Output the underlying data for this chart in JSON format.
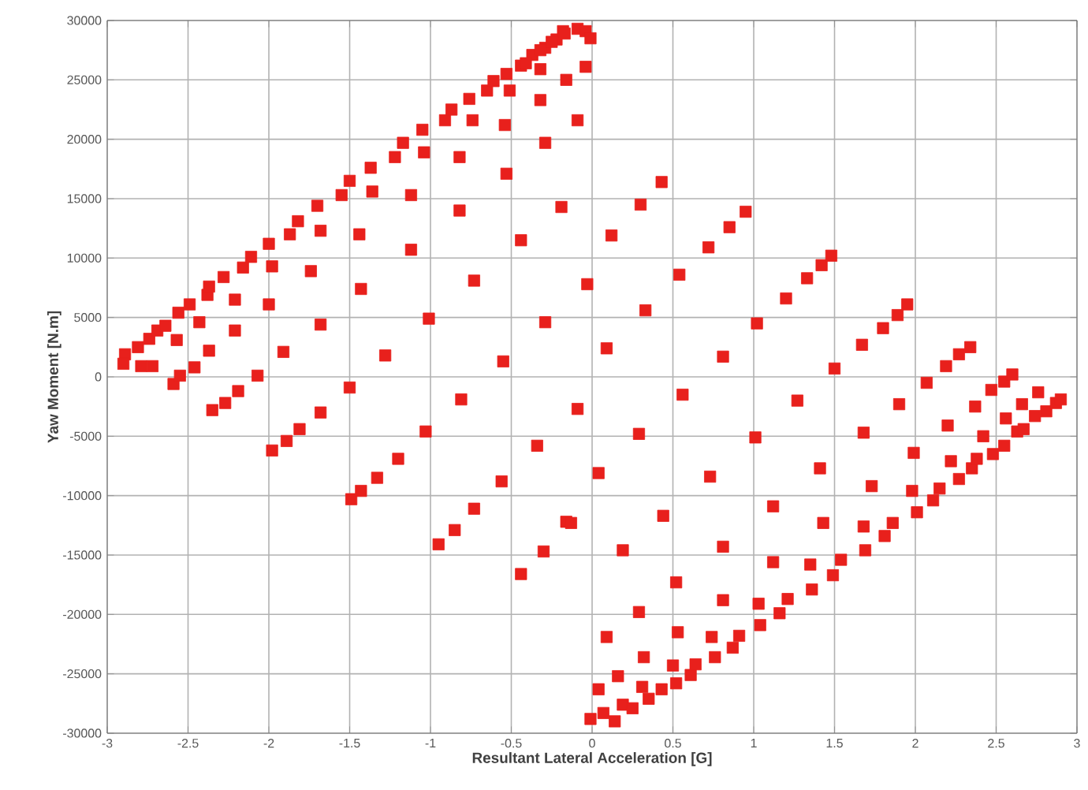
{
  "chart_data": {
    "type": "scatter",
    "xlabel": "Resultant Lateral Acceleration [G]",
    "ylabel": "Yaw Moment [N.m]",
    "xlim": [
      -3,
      3
    ],
    "ylim": [
      -30000,
      30000
    ],
    "xticks": [
      -3,
      -2.5,
      -2,
      -1.5,
      -1,
      -0.5,
      0,
      0.5,
      1,
      1.5,
      2,
      2.5,
      3
    ],
    "yticks": [
      -30000,
      -25000,
      -20000,
      -15000,
      -10000,
      -5000,
      0,
      5000,
      10000,
      15000,
      20000,
      25000,
      30000
    ],
    "grid": true,
    "marker": "square",
    "color": "#e8201c",
    "x": [
      -2.89,
      -2.81,
      -2.74,
      -2.69,
      -2.64,
      -2.56,
      -2.49,
      -2.38,
      -2.37,
      -2.28,
      -2.16,
      -2.11,
      -2.0,
      -1.87,
      -1.82,
      -1.7,
      -1.55,
      -1.5,
      -1.37,
      -1.22,
      -1.17,
      -1.05,
      -0.91,
      -0.87,
      -0.76,
      -0.65,
      -0.61,
      -0.53,
      -0.44,
      -0.37,
      -0.29,
      -0.22,
      -0.18,
      -0.41,
      -0.32,
      -0.25,
      -0.17,
      -0.09,
      -0.04,
      -0.01,
      -2.57,
      -2.43,
      -2.21,
      -1.98,
      -1.74,
      -1.68,
      -1.43,
      -1.44,
      -1.36,
      -1.12,
      -1.12,
      -1.04,
      -0.82,
      -0.74,
      -0.82,
      -0.73,
      -0.53,
      -0.54,
      -0.51,
      -0.44,
      -0.32,
      -0.32,
      -0.29,
      -0.29,
      -0.19,
      -0.16,
      -0.09,
      -0.04,
      -2.21,
      -2.37,
      -2.0,
      -1.91,
      -1.68,
      -1.28,
      -1.01,
      -0.55,
      -0.03,
      0.09,
      0.12,
      0.3,
      0.43,
      0.33,
      0.54,
      0.72,
      0.85,
      0.95,
      1.02,
      1.2,
      1.33,
      1.42,
      1.48,
      0.81,
      1.5,
      1.67,
      1.8,
      1.89,
      1.95,
      2.07,
      2.19,
      2.27,
      2.34,
      2.47,
      2.55,
      2.6,
      -2.9,
      -2.79,
      -2.72,
      -2.59,
      -2.55,
      -2.46,
      -2.35,
      -2.27,
      -2.19,
      -2.07,
      -1.98,
      -1.89,
      -1.81,
      -1.68,
      -1.5,
      -1.49,
      -1.43,
      -1.33,
      -1.2,
      -1.03,
      -0.81,
      -0.95,
      -0.85,
      -0.73,
      -0.56,
      -0.44,
      -0.34,
      -0.3,
      -0.16,
      -0.09,
      -0.13,
      0.04,
      0.19,
      0.29,
      0.44,
      0.56,
      0.73,
      0.81,
      1.01,
      1.12,
      1.12,
      1.27,
      1.41,
      1.43,
      1.68,
      1.68,
      1.73,
      1.9,
      1.99,
      1.98,
      2.2,
      2.22,
      2.37,
      2.42,
      2.56,
      -0.01,
      0.04,
      0.07,
      0.14,
      0.16,
      0.19,
      0.09,
      0.29,
      0.32,
      0.31,
      0.25,
      0.35,
      0.43,
      0.52,
      0.5,
      0.53,
      0.52,
      0.61,
      0.64,
      0.76,
      0.74,
      0.81,
      0.87,
      0.91,
      1.03,
      1.04,
      1.16,
      1.21,
      1.36,
      1.35,
      1.49,
      1.54,
      1.69,
      1.81,
      1.86,
      2.01,
      2.11,
      2.15,
      2.27,
      2.35,
      2.38,
      2.48,
      2.55,
      2.63,
      2.67,
      2.74,
      2.81,
      2.87,
      2.9,
      2.76,
      2.66
    ],
    "values": [
      1900,
      2500,
      3200,
      3900,
      4300,
      5400,
      6100,
      6900,
      7600,
      8400,
      9200,
      10100,
      11200,
      12000,
      13100,
      14400,
      15300,
      16500,
      17600,
      18500,
      19700,
      20800,
      21600,
      22500,
      23400,
      24100,
      24900,
      25500,
      26200,
      27100,
      27700,
      28400,
      29100,
      26400,
      27500,
      28200,
      28900,
      29300,
      29100,
      28500,
      3100,
      4600,
      6500,
      9300,
      8900,
      12300,
      7400,
      12000,
      15600,
      15300,
      10700,
      18900,
      18500,
      21600,
      14000,
      8100,
      17100,
      21200,
      24100,
      11500,
      25900,
      23300,
      19700,
      4600,
      14300,
      25000,
      21600,
      26100,
      3900,
      2200,
      6100,
      2100,
      4400,
      1800,
      4900,
      1300,
      7800,
      2400,
      11900,
      14500,
      16400,
      5600,
      8600,
      10900,
      12600,
      13900,
      4500,
      6600,
      8300,
      9400,
      10200,
      1700,
      700,
      2700,
      4100,
      5200,
      6100,
      -500,
      900,
      1900,
      2500,
      -1100,
      -400,
      200,
      1100,
      900,
      900,
      -600,
      100,
      800,
      -2800,
      -2200,
      -1200,
      100,
      -6200,
      -5400,
      -4400,
      -3000,
      -900,
      -10300,
      -9600,
      -8500,
      -6900,
      -4600,
      -1900,
      -14100,
      -12900,
      -11100,
      -8800,
      -16600,
      -5800,
      -14700,
      -12200,
      -2700,
      -12300,
      -8100,
      -14600,
      -4800,
      -11700,
      -1500,
      -8400,
      -14300,
      -5100,
      -10900,
      -15600,
      -2000,
      -7700,
      -12300,
      -4700,
      -12600,
      -9200,
      -2300,
      -6400,
      -9600,
      -4100,
      -7100,
      -2500,
      -5000,
      -3500,
      -28800,
      -26300,
      -28300,
      -29000,
      -25200,
      -27600,
      -21900,
      -19800,
      -23600,
      -26100,
      -27900,
      -27100,
      -26300,
      -25800,
      -24300,
      -21500,
      -17300,
      -25100,
      -24200,
      -23600,
      -21900,
      -18800,
      -22800,
      -21800,
      -19100,
      -20900,
      -19900,
      -18700,
      -17900,
      -15800,
      -16700,
      -15400,
      -14600,
      -13400,
      -12300,
      -11400,
      -10400,
      -9400,
      -8600,
      -7700,
      -6900,
      -6500,
      -5800,
      -4600,
      -4400,
      -3300,
      -2900,
      -2200,
      -1900,
      -1300,
      -2300
    ]
  }
}
